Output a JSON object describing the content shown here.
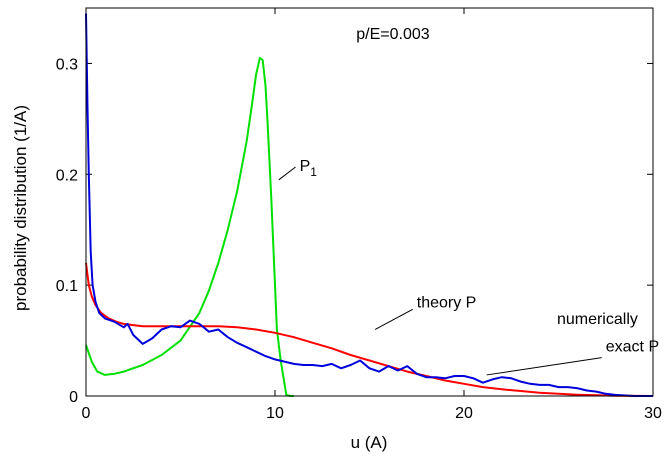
{
  "chart_data": {
    "type": "line",
    "title": "",
    "xlabel": "u (A)",
    "ylabel": "probability distribution (1/A)",
    "xlim": [
      0,
      30
    ],
    "ylim": [
      0,
      0.35
    ],
    "xticks": [
      0,
      10,
      20,
      30
    ],
    "xtick_labels": [
      "0",
      "10",
      "20",
      "30"
    ],
    "yticks": [
      0,
      0.1,
      0.2,
      0.3
    ],
    "ytick_labels": [
      "0",
      "0.1",
      "0.2",
      "0.3"
    ],
    "grid": false,
    "legend": "none",
    "annotations": [
      {
        "text": "p/E=0.003",
        "x": 14.3,
        "y": 0.322
      },
      {
        "text": "P",
        "subscript": "1",
        "x": 11.3,
        "y": 0.203,
        "pointer_to": [
          10.2,
          0.195
        ]
      },
      {
        "text": "theory P",
        "x": 17.5,
        "y": 0.08,
        "pointer_to": [
          15.3,
          0.06
        ]
      },
      {
        "text": "numerically",
        "x": 29.2,
        "y": 0.065
      },
      {
        "text": "exact P",
        "x": 27.5,
        "y": 0.04,
        "pointer_to": [
          21.2,
          0.019
        ]
      }
    ],
    "series": [
      {
        "color": "#00e000",
        "label_on_chart": "P1",
        "x": [
          0,
          0.3,
          0.6,
          1,
          1.5,
          2,
          3,
          4,
          5,
          6,
          6.5,
          7,
          7.5,
          8,
          8.5,
          8.8,
          9,
          9.2,
          9.35,
          9.5,
          9.6,
          9.8,
          10,
          10.1,
          10.3,
          10.6,
          10.8,
          11
        ],
        "y": [
          0.046,
          0.031,
          0.022,
          0.019,
          0.02,
          0.022,
          0.028,
          0.037,
          0.05,
          0.075,
          0.095,
          0.12,
          0.15,
          0.185,
          0.23,
          0.265,
          0.29,
          0.305,
          0.303,
          0.28,
          0.25,
          0.18,
          0.1,
          0.06,
          0.032,
          0.001,
          0,
          0
        ]
      },
      {
        "color": "#ff0000",
        "label_on_chart": "theory P",
        "x": [
          0,
          0.15,
          0.3,
          0.5,
          0.8,
          1.2,
          1.6,
          2,
          2.5,
          3,
          4,
          5,
          6,
          7,
          8,
          9,
          10,
          11,
          12,
          13,
          14,
          15,
          16,
          17,
          18,
          19,
          20,
          21,
          22,
          23,
          24,
          25,
          26,
          27,
          28,
          29,
          30
        ],
        "y": [
          0.12,
          0.1,
          0.09,
          0.082,
          0.075,
          0.07,
          0.067,
          0.065,
          0.064,
          0.063,
          0.063,
          0.063,
          0.063,
          0.063,
          0.062,
          0.06,
          0.057,
          0.053,
          0.048,
          0.043,
          0.037,
          0.032,
          0.027,
          0.022,
          0.018,
          0.014,
          0.011,
          0.008,
          0.006,
          0.0045,
          0.003,
          0.002,
          0.0012,
          0.0006,
          0.0003,
          0.0001,
          0
        ]
      },
      {
        "color": "#0000dd",
        "label_on_chart": "numerically exact P",
        "x": [
          0,
          0.08,
          0.15,
          0.25,
          0.35,
          0.5,
          0.7,
          1,
          1.5,
          2,
          2.2,
          2.5,
          3,
          3.5,
          4,
          4.5,
          5,
          5.5,
          6,
          6.5,
          7,
          7.5,
          8,
          8.5,
          9,
          9.5,
          10,
          10.5,
          11,
          11.5,
          12,
          12.5,
          13,
          13.5,
          14,
          14.5,
          15,
          15.5,
          16,
          16.5,
          17,
          17.5,
          18,
          18.5,
          19,
          19.5,
          20,
          20.5,
          21,
          21.5,
          22,
          22.5,
          23,
          23.5,
          24,
          24.5,
          25,
          25.5,
          26,
          26.5,
          27,
          27.5,
          28,
          29,
          30
        ],
        "y": [
          0.345,
          0.26,
          0.2,
          0.13,
          0.1,
          0.085,
          0.075,
          0.07,
          0.067,
          0.062,
          0.065,
          0.055,
          0.047,
          0.052,
          0.06,
          0.063,
          0.062,
          0.068,
          0.065,
          0.058,
          0.06,
          0.053,
          0.048,
          0.044,
          0.04,
          0.036,
          0.033,
          0.031,
          0.029,
          0.028,
          0.028,
          0.027,
          0.029,
          0.025,
          0.028,
          0.032,
          0.025,
          0.022,
          0.027,
          0.023,
          0.027,
          0.02,
          0.017,
          0.017,
          0.016,
          0.018,
          0.018,
          0.016,
          0.012,
          0.015,
          0.017,
          0.016,
          0.013,
          0.011,
          0.01,
          0.01,
          0.008,
          0.008,
          0.007,
          0.005,
          0.004,
          0.002,
          0.001,
          0,
          0
        ]
      }
    ]
  }
}
